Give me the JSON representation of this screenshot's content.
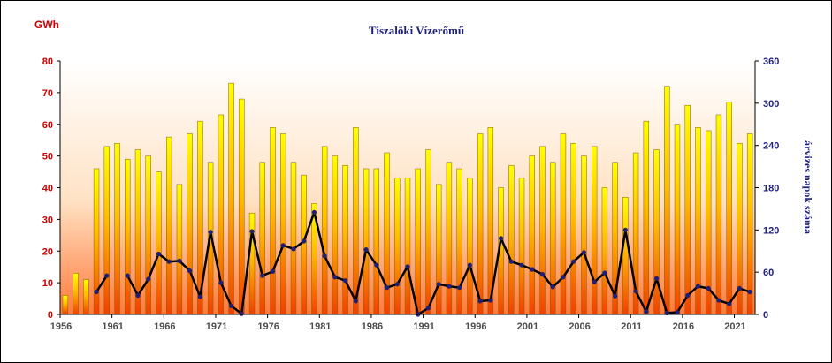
{
  "chart_data": {
    "type": "bar+line",
    "title": "Tiszalöki Vízerőmű",
    "left_axis": {
      "label": "GWh",
      "ylim": [
        0,
        80
      ],
      "ticks": [
        0,
        10,
        20,
        30,
        40,
        50,
        60,
        70,
        80
      ],
      "color": "#cc0000"
    },
    "right_axis": {
      "label": "árvizes napok száma",
      "ylim": [
        0,
        360
      ],
      "ticks": [
        0,
        60,
        120,
        180,
        240,
        300,
        360
      ],
      "color": "#1f1f7a"
    },
    "x_tick_labels": [
      "1956",
      "1961",
      "1966",
      "1971",
      "1976",
      "1981",
      "1986",
      "1991",
      "1996",
      "2001",
      "2006",
      "2011",
      "2016",
      "2021"
    ],
    "years": [
      1956,
      1957,
      1958,
      1959,
      1960,
      1961,
      1962,
      1963,
      1964,
      1965,
      1966,
      1967,
      1968,
      1969,
      1970,
      1971,
      1972,
      1973,
      1974,
      1975,
      1976,
      1977,
      1978,
      1979,
      1980,
      1981,
      1982,
      1983,
      1984,
      1985,
      1986,
      1987,
      1988,
      1989,
      1990,
      1991,
      1992,
      1993,
      1994,
      1995,
      1996,
      1997,
      1998,
      1999,
      2000,
      2001,
      2002,
      2003,
      2004,
      2005,
      2006,
      2007,
      2008,
      2009,
      2010,
      2011,
      2012,
      2013,
      2014,
      2015,
      2016,
      2017,
      2018,
      2019,
      2020,
      2021,
      2022
    ],
    "series": [
      {
        "kind": "bar",
        "axis": "left",
        "values": [
          6,
          13,
          11,
          46,
          53,
          54,
          49,
          52,
          50,
          45,
          56,
          41,
          57,
          61,
          48,
          63,
          73,
          68,
          32,
          48,
          59,
          57,
          48,
          44,
          35,
          53,
          50,
          47,
          59,
          46,
          46,
          51,
          43,
          43,
          46,
          52,
          41,
          48,
          46,
          43,
          57,
          59,
          40,
          47,
          43,
          50,
          53,
          48,
          57,
          54,
          50,
          53,
          40,
          48,
          37,
          51,
          61,
          52,
          72,
          60,
          66,
          59,
          58,
          63,
          67,
          54,
          57
        ]
      },
      {
        "kind": "line",
        "axis": "right",
        "values": [
          null,
          null,
          null,
          32,
          55,
          null,
          55,
          27,
          50,
          86,
          75,
          76,
          62,
          25,
          117,
          45,
          12,
          1,
          118,
          55,
          61,
          98,
          93,
          104,
          145,
          83,
          53,
          48,
          19,
          92,
          70,
          38,
          43,
          68,
          0,
          9,
          43,
          40,
          38,
          70,
          19,
          20,
          108,
          75,
          70,
          64,
          57,
          39,
          53,
          75,
          88,
          46,
          59,
          26,
          120,
          33,
          4,
          51,
          2,
          3,
          27,
          40,
          37,
          20,
          15,
          37,
          32
        ]
      }
    ],
    "colors": {
      "bar_top": "#ffff00",
      "bar_bottom": "#f04000",
      "line": "#000000",
      "marker": "#1f1f7a"
    },
    "grid": false
  }
}
